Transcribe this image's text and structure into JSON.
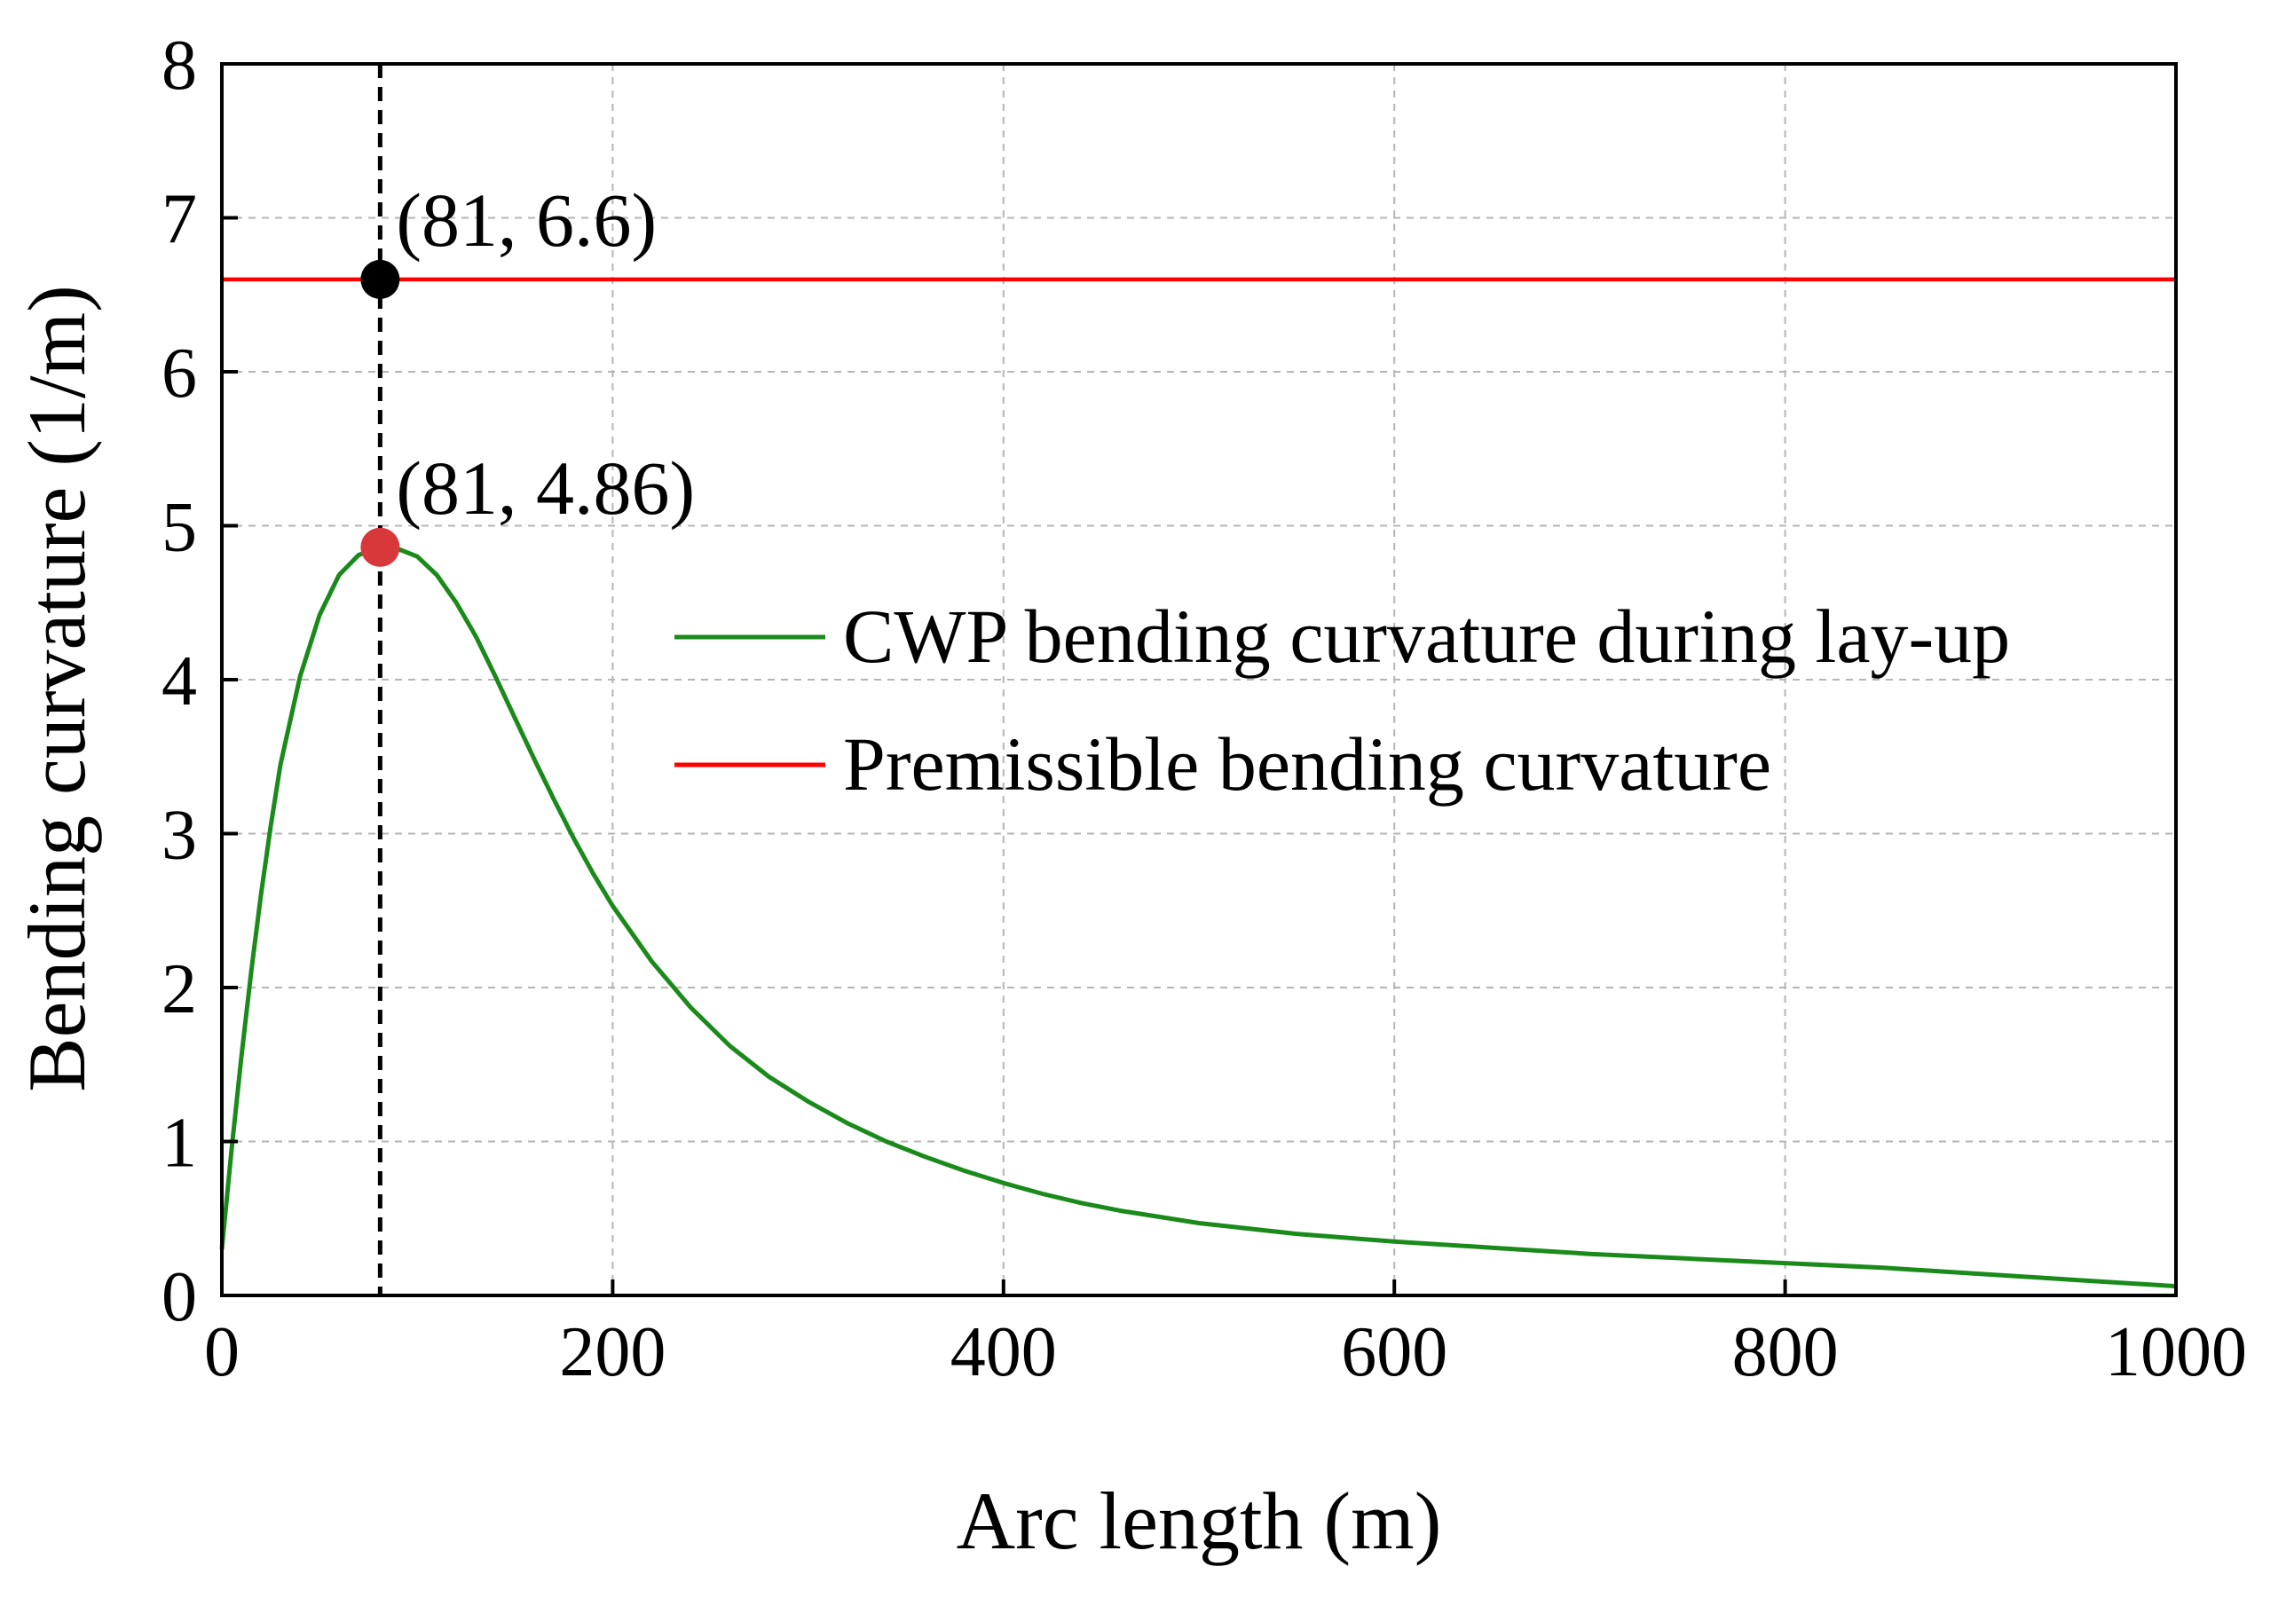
{
  "chart_data": {
    "type": "line",
    "xlabel": "Arc length (m)",
    "ylabel": "Bending curvature (1/m)",
    "xlim": [
      0,
      1000
    ],
    "ylim": [
      0,
      8
    ],
    "xticks": [
      0,
      200,
      400,
      600,
      800,
      1000
    ],
    "yticks": [
      0,
      1,
      2,
      3,
      4,
      5,
      6,
      7,
      8
    ],
    "grid": true,
    "legend_position": "right-middle",
    "series": [
      {
        "name": "CWP bending curvature during lay-up",
        "color": "#1a8a1a",
        "x": [
          0,
          5,
          10,
          15,
          20,
          25,
          30,
          40,
          50,
          60,
          70,
          81,
          90,
          100,
          110,
          120,
          130,
          140,
          150,
          160,
          170,
          180,
          190,
          200,
          220,
          240,
          260,
          280,
          300,
          320,
          340,
          360,
          380,
          400,
          420,
          440,
          460,
          480,
          500,
          550,
          600,
          650,
          700,
          750,
          800,
          850,
          900,
          950,
          1000
        ],
        "y": [
          0.3,
          0.95,
          1.55,
          2.1,
          2.6,
          3.05,
          3.45,
          4.02,
          4.42,
          4.68,
          4.81,
          4.86,
          4.85,
          4.8,
          4.68,
          4.5,
          4.28,
          4.02,
          3.75,
          3.48,
          3.22,
          2.97,
          2.74,
          2.53,
          2.17,
          1.87,
          1.62,
          1.42,
          1.26,
          1.12,
          1.0,
          0.9,
          0.81,
          0.73,
          0.66,
          0.6,
          0.55,
          0.51,
          0.47,
          0.4,
          0.35,
          0.31,
          0.27,
          0.24,
          0.21,
          0.18,
          0.14,
          0.1,
          0.06
        ]
      },
      {
        "name": "Premissible bending curvature",
        "color": "#ff0000",
        "x": [
          0,
          1000
        ],
        "y": [
          6.6,
          6.6
        ]
      }
    ],
    "vline": {
      "x": 81,
      "style": "dashed",
      "color": "#000000"
    },
    "points": [
      {
        "x": 81,
        "y": 6.6,
        "color": "#000000",
        "label": "(81, 6.6)"
      },
      {
        "x": 81,
        "y": 4.86,
        "color": "#d9383a",
        "label": "(81, 4.86)"
      }
    ]
  }
}
